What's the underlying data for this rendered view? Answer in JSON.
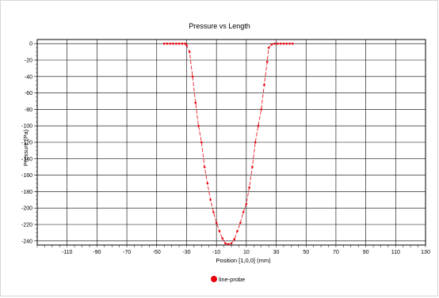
{
  "chart_data": {
    "type": "line",
    "title": "Pressure vs Length",
    "xlabel": "Position [1,0,0] (mm)",
    "ylabel": "Pressure (Pa)",
    "xlim": [
      -130,
      130
    ],
    "ylim": [
      -245,
      5
    ],
    "x_ticks": [
      -110,
      -90,
      -70,
      -50,
      -30,
      -10,
      10,
      30,
      50,
      70,
      90,
      110,
      130
    ],
    "y_ticks": [
      0,
      -20,
      -40,
      -60,
      -80,
      -100,
      -120,
      -140,
      -160,
      -180,
      -200,
      -220,
      -240
    ],
    "grid": true,
    "legend_position": "bottom-center",
    "series": [
      {
        "name": "line-probe",
        "color": "#e8000b",
        "x": [
          -45,
          -43,
          -41,
          -39,
          -37,
          -35,
          -33,
          -31,
          -30,
          -28,
          -26,
          -24,
          -22,
          -20,
          -18,
          -16,
          -14,
          -12,
          -10,
          -8,
          -6,
          -4,
          -2,
          0,
          2,
          4,
          6,
          8,
          10,
          12,
          14,
          16,
          18,
          20,
          22,
          24,
          25,
          27,
          29,
          31,
          33,
          35,
          37,
          39,
          41
        ],
        "y": [
          0,
          0,
          0,
          0,
          0,
          0,
          0,
          0,
          -2,
          -10,
          -40,
          -72,
          -100,
          -120,
          -150,
          -170,
          -190,
          -205,
          -218,
          -228,
          -237,
          -243,
          -244,
          -243,
          -238,
          -228,
          -218,
          -205,
          -195,
          -175,
          -150,
          -120,
          -100,
          -80,
          -50,
          -22,
          -5,
          -1,
          0,
          0,
          0,
          0,
          0,
          0,
          0
        ]
      }
    ]
  }
}
